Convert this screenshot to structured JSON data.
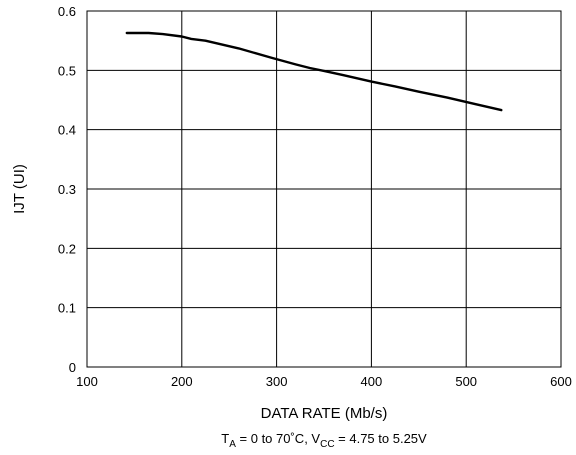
{
  "chart_data": {
    "type": "line",
    "xlabel": "DATA RATE (Mb/s)",
    "ylabel": "IJT (UI)",
    "xlim": [
      100,
      600
    ],
    "ylim": [
      0,
      0.6
    ],
    "x_ticks": [
      "100",
      "200",
      "300",
      "400",
      "500",
      "600"
    ],
    "y_ticks": [
      "0",
      "0.1",
      "0.2",
      "0.3",
      "0.4",
      "0.5",
      "0.6"
    ],
    "grid": true,
    "conditions": {
      "ta_base": "T",
      "ta_sub": "A",
      "ta_rest": " = 0 to 70˚C, ",
      "vcc_base": "V",
      "vcc_sub": "CC",
      "vcc_rest": " = 4.75 to 5.25V"
    },
    "series": [
      {
        "x": [
          142,
          165,
          180,
          200,
          210,
          225,
          260,
          295,
          320,
          335,
          350,
          370,
          400,
          425,
          450,
          480,
          510,
          537
        ],
        "y": [
          0.563,
          0.563,
          0.561,
          0.557,
          0.553,
          0.55,
          0.537,
          0.521,
          0.51,
          0.504,
          0.499,
          0.492,
          0.481,
          0.473,
          0.464,
          0.454,
          0.443,
          0.433
        ]
      }
    ]
  }
}
